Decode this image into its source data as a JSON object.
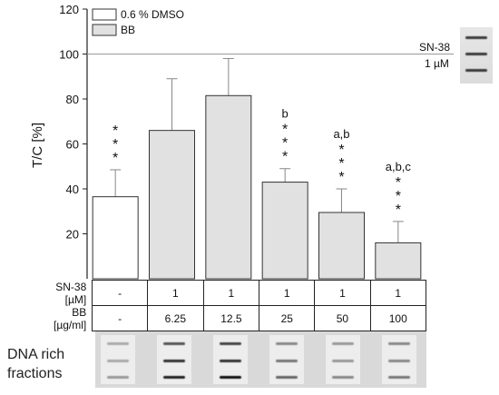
{
  "chart_data": {
    "type": "bar",
    "ylabel": "T/C [%]",
    "ylim": [
      0,
      120
    ],
    "yticks": [
      20,
      40,
      60,
      80,
      100,
      120
    ],
    "grid": false,
    "legend": {
      "placement": "top-left",
      "entries": [
        {
          "label": "0.6 % DMSO",
          "color": "#ffffff"
        },
        {
          "label": "BB",
          "color": "#e1e1e1"
        }
      ]
    },
    "reference_line": {
      "value": 100,
      "label_line1": "SN-38",
      "label_line2": "1 µM"
    },
    "series": [
      {
        "name": "0.6 % DMSO",
        "values": [
          36.5,
          null,
          null,
          null,
          null,
          null
        ]
      },
      {
        "name": "BB",
        "values": [
          null,
          66,
          81.5,
          43,
          29.5,
          16
        ]
      }
    ],
    "bars": [
      {
        "value": 36.5,
        "error": 12,
        "annotation": "",
        "stars": 3,
        "fill": "#ffffff"
      },
      {
        "value": 66,
        "error": 23,
        "annotation": "",
        "stars": 0,
        "fill": "#e1e1e1"
      },
      {
        "value": 81.5,
        "error": 16.5,
        "annotation": "",
        "stars": 0,
        "fill": "#e1e1e1"
      },
      {
        "value": 43,
        "error": 6,
        "annotation": "b",
        "stars": 3,
        "fill": "#e1e1e1"
      },
      {
        "value": 29.5,
        "error": 10.5,
        "annotation": "a,b",
        "stars": 3,
        "fill": "#e1e1e1"
      },
      {
        "value": 16,
        "error": 9.5,
        "annotation": "a,b,c",
        "stars": 3,
        "fill": "#e1e1e1"
      }
    ],
    "star_symbol": "*",
    "table": {
      "rows": [
        {
          "label": "SN-38 [µM]",
          "values": [
            "-",
            "1",
            "1",
            "1",
            "1",
            "1"
          ]
        },
        {
          "label": "BB [µg/ml]",
          "values": [
            "-",
            "6.25",
            "12.5",
            "25",
            "50",
            "100"
          ]
        }
      ]
    }
  },
  "gel_label_line1": "DNA rich",
  "gel_label_line2": "fractions",
  "colors": {
    "axis": "#222222",
    "bar_stroke": "#333333",
    "error": "#888888",
    "refline": "#999999"
  }
}
